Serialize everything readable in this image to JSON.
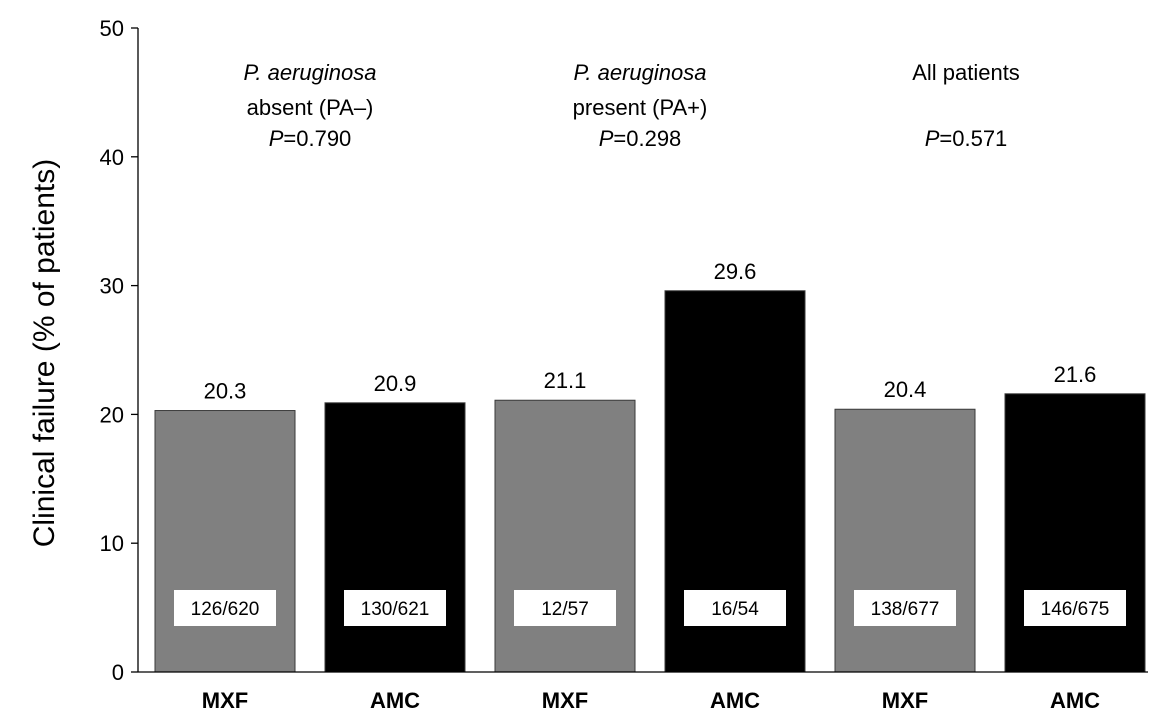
{
  "chart_data": {
    "type": "bar",
    "title": "",
    "xlabel": "",
    "ylabel": "Clinical failure (% of patients)",
    "ylim": [
      0,
      50
    ],
    "yticks": [
      0,
      10,
      20,
      30,
      40,
      50
    ],
    "grid": false,
    "categories": [
      "MXF",
      "AMC",
      "MXF",
      "AMC",
      "MXF",
      "AMC"
    ],
    "values": [
      20.3,
      20.9,
      21.1,
      29.6,
      20.4,
      21.6
    ],
    "value_labels": [
      "20.3",
      "20.9",
      "21.1",
      "29.6",
      "20.4",
      "21.6"
    ],
    "counts": [
      "126/620",
      "130/621",
      "12/57",
      "16/54",
      "138/677",
      "146/675"
    ],
    "colors": {
      "MXF": "#808080",
      "AMC": "#000000"
    },
    "groups": [
      {
        "lines": [
          {
            "parts": [
              {
                "text": "P. aeruginosa",
                "italic": true
              }
            ]
          },
          {
            "parts": [
              {
                "text": "absent  (PA–)",
                "italic": false
              }
            ]
          },
          {
            "parts": [
              {
                "text": "P",
                "italic": true
              },
              {
                "text": "=0.790",
                "italic": false
              }
            ]
          }
        ]
      },
      {
        "lines": [
          {
            "parts": [
              {
                "text": "P. aeruginosa",
                "italic": true
              }
            ]
          },
          {
            "parts": [
              {
                "text": "present  (PA+)",
                "italic": false
              }
            ]
          },
          {
            "parts": [
              {
                "text": "P",
                "italic": true
              },
              {
                "text": "=0.298",
                "italic": false
              }
            ]
          }
        ]
      },
      {
        "lines": [
          {
            "parts": [
              {
                "text": "All patients",
                "italic": false
              }
            ]
          },
          {
            "parts": []
          },
          {
            "parts": [
              {
                "text": "P",
                "italic": true
              },
              {
                "text": "=0.571",
                "italic": false
              }
            ]
          }
        ]
      }
    ]
  }
}
